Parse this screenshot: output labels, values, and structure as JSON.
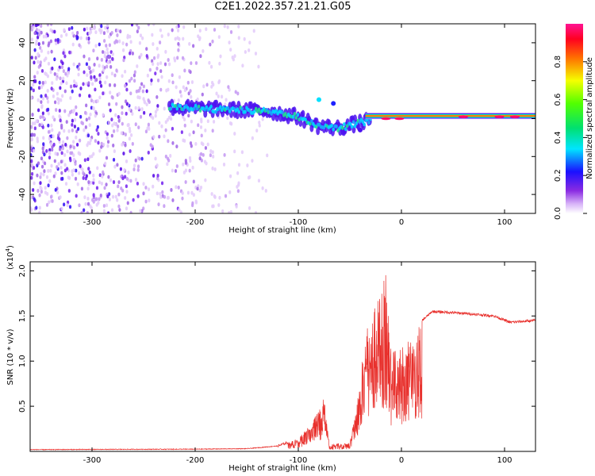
{
  "title": "C2E1.2022.357.21.21.G05",
  "chart_data": [
    {
      "type": "heatmap",
      "xlabel": "Height of straight line (km)",
      "ylabel": "Frequency (Hz)",
      "xlim": [
        -360,
        130
      ],
      "ylim": [
        -50,
        50
      ],
      "xticks": [
        -300,
        -200,
        -100,
        0,
        100
      ],
      "yticks": [
        -40,
        -20,
        0,
        20,
        40
      ],
      "colorbar": {
        "label": "Normalized spectral amplitude",
        "range": [
          0,
          1
        ],
        "ticks": [
          "0.0",
          "0.2",
          "0.4",
          "0.6",
          "0.8"
        ],
        "colormap": "rainbow: white-violet-blue-cyan-green-yellow-red-magenta"
      },
      "features": {
        "noise_region_x": [
          -360,
          -125
        ],
        "signal_track": [
          {
            "x": -225,
            "y": 6
          },
          {
            "x": -180,
            "y": 5
          },
          {
            "x": -130,
            "y": 4
          },
          {
            "x": -100,
            "y": 1
          },
          {
            "x": -80,
            "y": -4
          },
          {
            "x": -60,
            "y": -5
          },
          {
            "x": -40,
            "y": -2
          },
          {
            "x": -20,
            "y": 0
          },
          {
            "x": 130,
            "y": 1
          }
        ]
      }
    },
    {
      "type": "line",
      "xlabel": "Height of straight line (km)",
      "ylabel": "SNR (10 * v/v)",
      "y_multiplier": "(x10",
      "y_multiplier_exp": "4",
      "xlim": [
        -360,
        130
      ],
      "ylim": [
        0,
        2.1
      ],
      "xticks": [
        -300,
        -200,
        -100,
        0,
        100
      ],
      "yticks": [
        0.5,
        1.0,
        1.5,
        2.0
      ],
      "series": [
        {
          "color": "#e8302c",
          "envelope": [
            {
              "x": -360,
              "y": 0.02
            },
            {
              "x": -200,
              "y": 0.025
            },
            {
              "x": -150,
              "y": 0.03
            },
            {
              "x": -120,
              "y": 0.06
            },
            {
              "x": -100,
              "y": 0.14
            },
            {
              "x": -90,
              "y": 0.28
            },
            {
              "x": -80,
              "y": 0.45
            },
            {
              "x": -75,
              "y": 0.6
            },
            {
              "x": -70,
              "y": 0.08
            },
            {
              "x": -50,
              "y": 0.1
            },
            {
              "x": -40,
              "y": 0.8
            },
            {
              "x": -35,
              "y": 1.3
            },
            {
              "x": -30,
              "y": 1.5
            },
            {
              "x": -18,
              "y": 1.8
            },
            {
              "x": -16,
              "y": 2.1
            },
            {
              "x": -10,
              "y": 1.1
            },
            {
              "x": 0,
              "y": 1.2
            },
            {
              "x": 10,
              "y": 1.25
            },
            {
              "x": 20,
              "y": 1.45
            },
            {
              "x": 30,
              "y": 1.55
            },
            {
              "x": 60,
              "y": 1.53
            },
            {
              "x": 90,
              "y": 1.5
            },
            {
              "x": 105,
              "y": 1.43
            },
            {
              "x": 130,
              "y": 1.45
            }
          ]
        }
      ]
    }
  ]
}
